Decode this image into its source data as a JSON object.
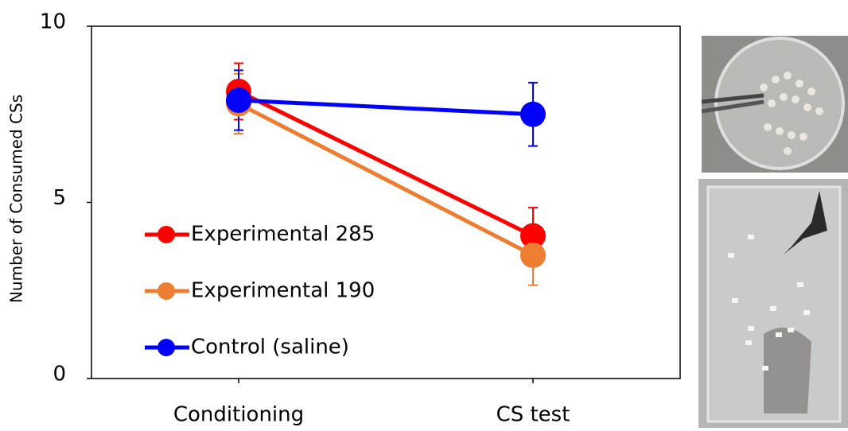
{
  "chart_data": {
    "type": "line",
    "y_label": "Number of Consumed CSs",
    "categories": [
      "Conditioning",
      "CS test"
    ],
    "series": [
      {
        "name": "Experimental 285",
        "color": "#ff0000",
        "values": [
          8.15,
          4.05
        ],
        "errors": [
          0.8,
          0.8
        ]
      },
      {
        "name": "Experimental 190",
        "color": "#ed7d31",
        "values": [
          7.8,
          3.5
        ],
        "errors": [
          0.85,
          0.85
        ]
      },
      {
        "name": "Control (saline)",
        "color": "#0000ff",
        "values": [
          7.9,
          7.5
        ],
        "errors": [
          0.85,
          0.9
        ]
      }
    ],
    "ylim": [
      0,
      10
    ],
    "yticks": [
      0,
      5,
      10
    ],
    "legend": "lower left"
  }
}
